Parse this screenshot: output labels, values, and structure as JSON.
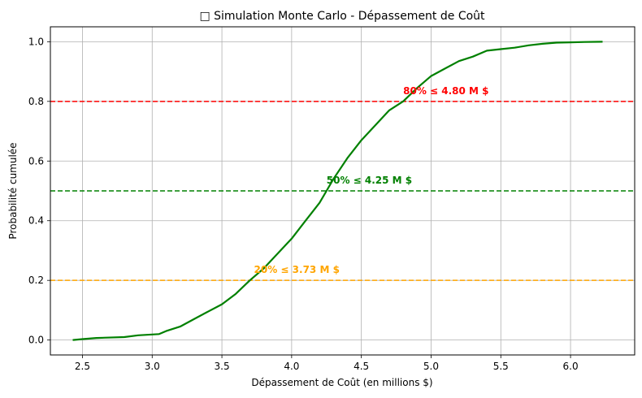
{
  "chart_data": {
    "type": "line",
    "title": "□ Simulation Monte Carlo - Dépassement de Coût",
    "xlabel": "Dépassement de Coût (en millions $)",
    "ylabel": "Probabilité cumulée",
    "xlim": [
      2.27,
      6.46
    ],
    "ylim": [
      -0.05,
      1.05
    ],
    "xticks": [
      2.5,
      3.0,
      3.5,
      4.0,
      4.5,
      5.0,
      5.5,
      6.0
    ],
    "xtick_labels": [
      "2.5",
      "3.0",
      "3.5",
      "4.0",
      "4.5",
      "5.0",
      "5.5",
      "6.0"
    ],
    "yticks": [
      0.0,
      0.2,
      0.4,
      0.6,
      0.8,
      1.0
    ],
    "ytick_labels": [
      "0.0",
      "0.2",
      "0.4",
      "0.6",
      "0.8",
      "1.0"
    ],
    "grid": true,
    "series": [
      {
        "color": "#008000",
        "x": [
          2.43,
          2.5,
          2.6,
          2.8,
          2.9,
          3.05,
          3.1,
          3.2,
          3.3,
          3.4,
          3.5,
          3.6,
          3.7,
          3.8,
          3.9,
          4.0,
          4.1,
          4.2,
          4.25,
          4.3,
          4.4,
          4.5,
          4.6,
          4.7,
          4.8,
          4.9,
          5.0,
          5.1,
          5.2,
          5.3,
          5.4,
          5.5,
          5.6,
          5.7,
          5.8,
          5.9,
          6.0,
          6.1,
          6.23
        ],
        "y": [
          0.0,
          0.003,
          0.007,
          0.01,
          0.016,
          0.02,
          0.03,
          0.045,
          0.07,
          0.095,
          0.12,
          0.155,
          0.2,
          0.24,
          0.29,
          0.34,
          0.4,
          0.46,
          0.5,
          0.54,
          0.61,
          0.67,
          0.72,
          0.77,
          0.8,
          0.845,
          0.885,
          0.91,
          0.935,
          0.95,
          0.97,
          0.975,
          0.98,
          0.988,
          0.993,
          0.997,
          0.998,
          0.999,
          1.0
        ]
      }
    ],
    "hlines": [
      {
        "y": 0.8,
        "color": "#ff0000",
        "label": "80% ≤ 4.80 M $",
        "label_x": 4.8
      },
      {
        "y": 0.5,
        "color": "#008000",
        "label": "50% ≤ 4.25 M $",
        "label_x": 4.25
      },
      {
        "y": 0.2,
        "color": "#ffa500",
        "label": "20% ≤ 3.73 M $",
        "label_x": 3.73
      }
    ]
  }
}
